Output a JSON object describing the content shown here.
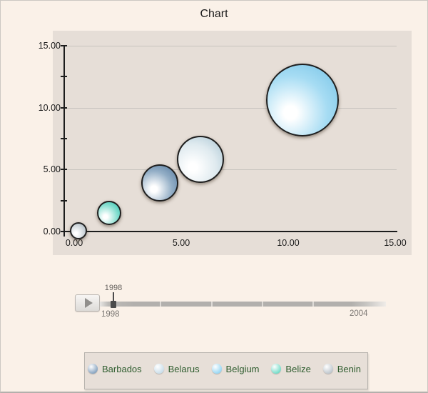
{
  "title": "Chart",
  "chart_data": {
    "type": "scatter",
    "title": "Chart",
    "xlabel": "",
    "ylabel": "",
    "xlim": [
      0,
      15
    ],
    "ylim": [
      0,
      15
    ],
    "x_tick_labels": [
      "0.00",
      "5.00",
      "10.00",
      "15.00"
    ],
    "y_tick_labels": [
      "0.00",
      "5.00",
      "10.00",
      "15.00"
    ],
    "grid": "horizontal",
    "legend_position": "bottom",
    "series": [
      {
        "name": "Belgium",
        "x": 10.65,
        "y": 10.6,
        "radius_px": 51,
        "color": "#7cc6e8",
        "fill_mid": "#a6dcf3",
        "fill_edge": "#74c2e6"
      },
      {
        "name": "Belarus",
        "x": 5.9,
        "y": 5.85,
        "radius_px": 33,
        "color": "#b7d0dd",
        "fill_mid": "#dfeaef",
        "fill_edge": "#a7c4d2"
      },
      {
        "name": "Barbados",
        "x": 4.0,
        "y": 3.9,
        "radius_px": 26,
        "color": "#5d83a8",
        "fill_mid": "#93aec6",
        "fill_edge": "#52789e"
      },
      {
        "name": "Belize",
        "x": 1.62,
        "y": 1.5,
        "radius_px": 17,
        "color": "#35c6b0",
        "fill_mid": "#8ce0d2",
        "fill_edge": "#27c0ac"
      },
      {
        "name": "Benin",
        "x": 0.2,
        "y": 0.05,
        "radius_px": 12,
        "color": "#aeb9c1",
        "fill_mid": "#d3dade",
        "fill_edge": "#9fadb7"
      }
    ]
  },
  "timeline": {
    "play_button_icon": "play-triangle-icon",
    "tooltip_year": "1998",
    "range_start": "1998",
    "range_end": "2004"
  },
  "legend": {
    "items": [
      {
        "label": "Barbados",
        "color": "#7d9cbb"
      },
      {
        "label": "Belarus",
        "color": "#c5dbe8"
      },
      {
        "label": "Belgium",
        "color": "#8ed3f2"
      },
      {
        "label": "Belize",
        "color": "#69d9c4"
      },
      {
        "label": "Benin",
        "color": "#b9c2c9"
      }
    ]
  },
  "colors": {
    "page_background": "#faf1e8",
    "plot_background": "#e6ded7",
    "gridline": "#c7c3be",
    "axis": "#1c1c1c",
    "legend_text": "#2e5c2e"
  }
}
